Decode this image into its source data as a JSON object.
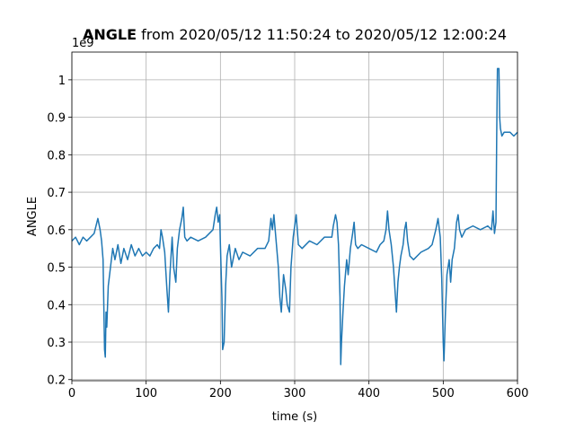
{
  "chart_data": {
    "type": "line",
    "title_bold": "ANGLE",
    "title": "from 2020/05/12 11:50:24 to 2020/05/12 12:00:24",
    "y_offset_label": "1e9",
    "xlabel": "time (s)",
    "ylabel": "ANGLE",
    "xlim": [
      0,
      600
    ],
    "xticks": [
      0,
      100,
      200,
      300,
      400,
      500,
      600
    ],
    "ylim": [
      0.197,
      1.074
    ],
    "yticks": [
      0.2,
      0.3,
      0.4,
      0.5,
      0.6,
      0.7,
      0.8,
      0.9,
      1.0
    ],
    "grid": true,
    "x": [
      0,
      5,
      10,
      15,
      20,
      25,
      30,
      35,
      38,
      40,
      42,
      44,
      45,
      46,
      47,
      49,
      52,
      55,
      58,
      62,
      66,
      70,
      75,
      80,
      85,
      90,
      95,
      100,
      105,
      110,
      115,
      118,
      120,
      122,
      125,
      128,
      130,
      132,
      135,
      137,
      140,
      142,
      145,
      148,
      150,
      152,
      155,
      160,
      170,
      180,
      190,
      193,
      195,
      197,
      199,
      200,
      202,
      203,
      205,
      207,
      209,
      212,
      215,
      220,
      225,
      230,
      240,
      250,
      260,
      265,
      268,
      270,
      272,
      275,
      278,
      280,
      282,
      285,
      288,
      290,
      293,
      295,
      298,
      300,
      302,
      305,
      310,
      320,
      330,
      340,
      350,
      352,
      355,
      357,
      359,
      361,
      362,
      363,
      365,
      367,
      370,
      372,
      375,
      378,
      380,
      382,
      385,
      390,
      400,
      410,
      415,
      420,
      423,
      425,
      427,
      430,
      433,
      435,
      437,
      439,
      441,
      443,
      446,
      448,
      450,
      452,
      455,
      460,
      470,
      480,
      485,
      490,
      493,
      496,
      498,
      500,
      501,
      503,
      505,
      508,
      510,
      512,
      515,
      518,
      520,
      522,
      525,
      530,
      540,
      550,
      560,
      565,
      567,
      569,
      571,
      572,
      573,
      575,
      576,
      577,
      579,
      582,
      590,
      595,
      600
    ],
    "series": [
      {
        "name": "ANGLE",
        "color": "#1f77b4",
        "values": [
          0.57,
          0.58,
          0.56,
          0.58,
          0.57,
          0.58,
          0.59,
          0.63,
          0.6,
          0.57,
          0.52,
          0.28,
          0.26,
          0.38,
          0.34,
          0.45,
          0.5,
          0.55,
          0.52,
          0.56,
          0.51,
          0.55,
          0.52,
          0.56,
          0.53,
          0.55,
          0.53,
          0.54,
          0.53,
          0.55,
          0.56,
          0.55,
          0.6,
          0.58,
          0.54,
          0.44,
          0.38,
          0.48,
          0.58,
          0.5,
          0.46,
          0.55,
          0.6,
          0.63,
          0.66,
          0.58,
          0.57,
          0.58,
          0.57,
          0.58,
          0.6,
          0.64,
          0.66,
          0.62,
          0.64,
          0.56,
          0.42,
          0.28,
          0.3,
          0.45,
          0.53,
          0.56,
          0.5,
          0.55,
          0.52,
          0.54,
          0.53,
          0.55,
          0.55,
          0.57,
          0.63,
          0.6,
          0.64,
          0.57,
          0.5,
          0.42,
          0.38,
          0.48,
          0.44,
          0.4,
          0.38,
          0.5,
          0.58,
          0.61,
          0.64,
          0.56,
          0.55,
          0.57,
          0.56,
          0.58,
          0.58,
          0.61,
          0.64,
          0.62,
          0.56,
          0.42,
          0.24,
          0.3,
          0.38,
          0.45,
          0.52,
          0.48,
          0.55,
          0.59,
          0.62,
          0.56,
          0.55,
          0.56,
          0.55,
          0.54,
          0.56,
          0.57,
          0.6,
          0.65,
          0.6,
          0.56,
          0.5,
          0.44,
          0.38,
          0.46,
          0.5,
          0.53,
          0.56,
          0.6,
          0.62,
          0.57,
          0.53,
          0.52,
          0.54,
          0.55,
          0.56,
          0.6,
          0.63,
          0.58,
          0.47,
          0.3,
          0.25,
          0.38,
          0.48,
          0.52,
          0.46,
          0.52,
          0.55,
          0.62,
          0.64,
          0.6,
          0.58,
          0.6,
          0.61,
          0.6,
          0.61,
          0.6,
          0.65,
          0.59,
          0.62,
          0.85,
          1.03,
          1.03,
          0.9,
          0.87,
          0.85,
          0.86,
          0.86,
          0.85,
          0.86
        ]
      }
    ]
  }
}
